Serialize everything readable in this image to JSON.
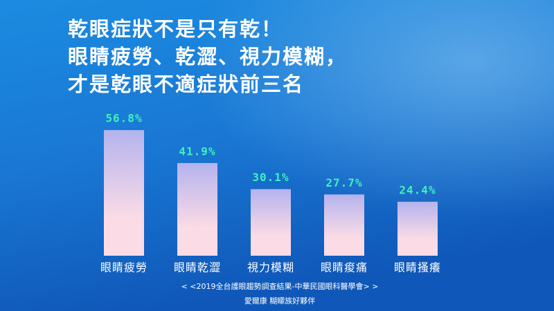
{
  "chart_data": {
    "type": "bar",
    "title": [
      "乾眼症狀不是只有乾！",
      "眼睛疲勞、乾澀、視力模糊，",
      "才是乾眼不適症狀前三名"
    ],
    "categories": [
      "眼睛疲勞",
      "眼睛乾澀",
      "視力模糊",
      "眼睛痠痛",
      "眼睛搔癢"
    ],
    "values": [
      56.8,
      41.9,
      30.1,
      27.7,
      24.4
    ],
    "value_labels": [
      "56.8%",
      "41.9%",
      "30.1%",
      "27.7%",
      "24.4%"
    ],
    "color": [
      "#b4b3ee",
      "#fbdbe6"
    ],
    "value_label_color": "#3ef2bb",
    "source": "< <2019全台護眼趨勢調查結果-中華民國眼科醫學會> >",
    "credit": "愛爾康 糊矇族好夥伴"
  }
}
